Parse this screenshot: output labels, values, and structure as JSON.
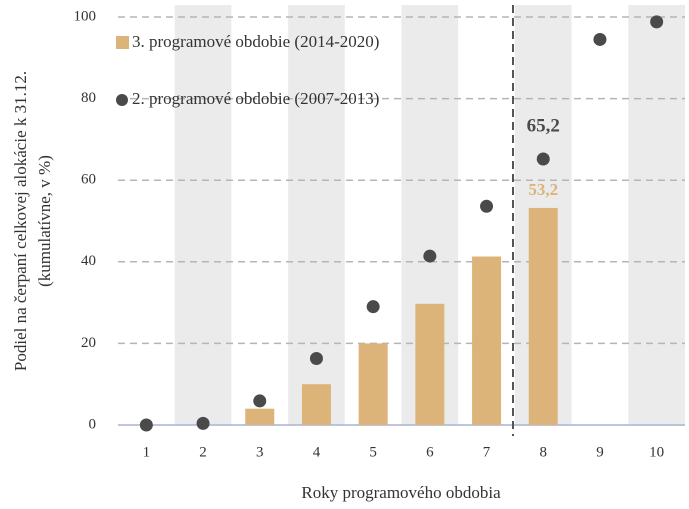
{
  "chart_data": {
    "type": "bar_scatter",
    "xlabel": "Roky programového obdobia",
    "ylabel": [
      "Podiel na čerpaní celkovej alokácie k 31.12.",
      "(kumulatívne, v %)"
    ],
    "categories": [
      "1",
      "2",
      "3",
      "4",
      "5",
      "6",
      "7",
      "8",
      "9",
      "10"
    ],
    "series": [
      {
        "name": "3. programové obdobie (2014-2020)",
        "type": "bar",
        "color": "#dcb47a",
        "values": [
          0,
          0,
          4,
          10,
          20,
          29.7,
          41.3,
          53.2,
          null,
          null
        ],
        "value_labels": [
          null,
          null,
          null,
          null,
          null,
          null,
          null,
          "53,2",
          null,
          null
        ]
      },
      {
        "name": "2. programové obdobie (2007-2013)",
        "type": "scatter",
        "color": "#4a4a4a",
        "values": [
          0,
          0.4,
          5.9,
          16.3,
          29,
          41.4,
          53.6,
          65.2,
          94.5,
          98.8
        ],
        "value_labels": [
          null,
          null,
          null,
          null,
          null,
          null,
          null,
          "65,2",
          null,
          null
        ]
      }
    ],
    "ylim": [
      0,
      100
    ],
    "yticks": [
      0,
      20,
      40,
      60,
      80,
      100
    ],
    "grid": true,
    "legend": "upper left"
  }
}
